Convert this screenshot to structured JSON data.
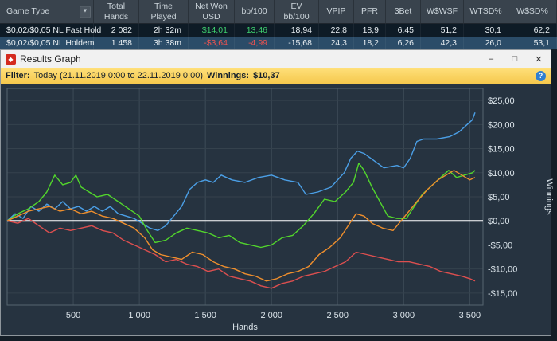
{
  "table": {
    "columns": [
      "Game Type",
      "Total Hands",
      "Time Played",
      "Net Won USD",
      "bb/100",
      "EV bb/100",
      "VPIP",
      "PFR",
      "3Bet",
      "W$WSF",
      "WTSD%",
      "W$SD%"
    ],
    "rows": [
      {
        "game_type": "$0,02/$0,05 NL Fast Hold",
        "total_hands": "2 082",
        "time_played": "2h 32m",
        "net_won": "$14,01",
        "bb100": "13,46",
        "ev_bb100": "18,94",
        "vpip": "22,8",
        "pfr": "18,9",
        "threebet": "6,45",
        "wwsf": "51,2",
        "wtsd": "30,1",
        "wsd": "62,2"
      },
      {
        "game_type": "$0,02/$0,05 NL Holdem",
        "total_hands": "1 458",
        "time_played": "3h 38m",
        "net_won": "-$3,64",
        "bb100": "-4,99",
        "ev_bb100": "-15,68",
        "vpip": "24,3",
        "pfr": "18,2",
        "threebet": "6,26",
        "wwsf": "42,3",
        "wtsd": "26,0",
        "wsd": "53,1"
      }
    ]
  },
  "window": {
    "title": "Results Graph",
    "filter": {
      "label": "Filter:",
      "range": "Today (21.11.2019 0:00 to 22.11.2019 0:00)",
      "winnings_label": "Winnings:",
      "winnings_value": "$10,37"
    }
  },
  "icons": {
    "app": "◆",
    "minimize": "–",
    "maximize": "□",
    "close": "✕",
    "help": "?",
    "dropdown": "▼"
  },
  "colors": {
    "positive": "#3ed06e",
    "negative": "#ef5350",
    "filter_bar": "#f8d355",
    "chart_background": "#263340",
    "zero_line": "#ffffff"
  },
  "chart_data": {
    "type": "line",
    "title": "Results Graph",
    "xlabel": "Hands",
    "ylabel": "Winnings",
    "xlim": [
      0,
      3600
    ],
    "ylim": [
      -17.5,
      27.5
    ],
    "grid": true,
    "legend": "none",
    "zero_line": 0,
    "x_ticks": [
      {
        "value": 500,
        "label": "500"
      },
      {
        "value": 1000,
        "label": "1 000"
      },
      {
        "value": 1500,
        "label": "1 500"
      },
      {
        "value": 2000,
        "label": "2 000"
      },
      {
        "value": 2500,
        "label": "2 500"
      },
      {
        "value": 3000,
        "label": "3 000"
      },
      {
        "value": 3500,
        "label": "3 500"
      }
    ],
    "y_ticks": [
      {
        "value": 25,
        "label": "$25,00"
      },
      {
        "value": 20,
        "label": "$20,00"
      },
      {
        "value": 15,
        "label": "$15,00"
      },
      {
        "value": 10,
        "label": "$10,00"
      },
      {
        "value": 5,
        "label": "$5,00"
      },
      {
        "value": 0,
        "label": "$0,00"
      },
      {
        "value": -5,
        "label": "-$5,00"
      },
      {
        "value": -10,
        "label": "-$10,00"
      },
      {
        "value": -15,
        "label": "-$15,00"
      }
    ],
    "series": [
      {
        "name": "series-blue",
        "color": "#4b9fe6",
        "points": [
          [
            0,
            0
          ],
          [
            60,
            1.5
          ],
          [
            120,
            0.5
          ],
          [
            180,
            3
          ],
          [
            240,
            2
          ],
          [
            300,
            3.5
          ],
          [
            360,
            2.5
          ],
          [
            420,
            4
          ],
          [
            480,
            2.5
          ],
          [
            540,
            3
          ],
          [
            600,
            2
          ],
          [
            660,
            3
          ],
          [
            720,
            2
          ],
          [
            780,
            3
          ],
          [
            840,
            1.5
          ],
          [
            900,
            1
          ],
          [
            960,
            0.5
          ],
          [
            1020,
            -0.5
          ],
          [
            1080,
            -1.5
          ],
          [
            1140,
            -2
          ],
          [
            1200,
            -1
          ],
          [
            1260,
            1
          ],
          [
            1320,
            3
          ],
          [
            1380,
            6.5
          ],
          [
            1440,
            8
          ],
          [
            1500,
            8.5
          ],
          [
            1560,
            8
          ],
          [
            1620,
            9.5
          ],
          [
            1700,
            8.5
          ],
          [
            1800,
            8
          ],
          [
            1900,
            9
          ],
          [
            2000,
            9.5
          ],
          [
            2100,
            8.5
          ],
          [
            2200,
            8
          ],
          [
            2260,
            5.5
          ],
          [
            2350,
            6
          ],
          [
            2450,
            7
          ],
          [
            2550,
            10
          ],
          [
            2600,
            13
          ],
          [
            2650,
            14.5
          ],
          [
            2700,
            14
          ],
          [
            2750,
            13
          ],
          [
            2850,
            11
          ],
          [
            2950,
            11.5
          ],
          [
            3000,
            11
          ],
          [
            3050,
            13
          ],
          [
            3100,
            16.5
          ],
          [
            3150,
            17
          ],
          [
            3250,
            17
          ],
          [
            3350,
            17.5
          ],
          [
            3420,
            18.5
          ],
          [
            3480,
            20
          ],
          [
            3520,
            21
          ],
          [
            3540,
            22.5
          ]
        ]
      },
      {
        "name": "series-green",
        "color": "#52d62c",
        "points": [
          [
            0,
            0
          ],
          [
            80,
            1.5
          ],
          [
            160,
            2.5
          ],
          [
            240,
            4
          ],
          [
            300,
            6
          ],
          [
            360,
            9.5
          ],
          [
            420,
            7.5
          ],
          [
            480,
            8
          ],
          [
            520,
            9.5
          ],
          [
            560,
            7
          ],
          [
            620,
            6
          ],
          [
            680,
            5
          ],
          [
            760,
            5.5
          ],
          [
            840,
            4
          ],
          [
            920,
            2.5
          ],
          [
            1000,
            1
          ],
          [
            1060,
            -2
          ],
          [
            1120,
            -4.5
          ],
          [
            1200,
            -4
          ],
          [
            1280,
            -2.5
          ],
          [
            1360,
            -1.5
          ],
          [
            1440,
            -2
          ],
          [
            1520,
            -2.5
          ],
          [
            1600,
            -3.5
          ],
          [
            1680,
            -3
          ],
          [
            1760,
            -4.5
          ],
          [
            1840,
            -5
          ],
          [
            1920,
            -5.5
          ],
          [
            2000,
            -5
          ],
          [
            2080,
            -3.5
          ],
          [
            2160,
            -3
          ],
          [
            2240,
            -1
          ],
          [
            2320,
            1.5
          ],
          [
            2400,
            4.5
          ],
          [
            2480,
            4
          ],
          [
            2560,
            6
          ],
          [
            2620,
            8
          ],
          [
            2660,
            12
          ],
          [
            2700,
            10.5
          ],
          [
            2760,
            7
          ],
          [
            2820,
            4
          ],
          [
            2880,
            1
          ],
          [
            2950,
            0.5
          ],
          [
            3020,
            0.5
          ],
          [
            3080,
            3
          ],
          [
            3140,
            5.5
          ],
          [
            3200,
            7
          ],
          [
            3280,
            9
          ],
          [
            3340,
            10.5
          ],
          [
            3400,
            9
          ],
          [
            3460,
            9.5
          ],
          [
            3520,
            10
          ],
          [
            3540,
            10.5
          ]
        ]
      },
      {
        "name": "series-orange",
        "color": "#ef8f2d",
        "points": [
          [
            0,
            0
          ],
          [
            80,
            1
          ],
          [
            160,
            2
          ],
          [
            240,
            2.5
          ],
          [
            320,
            3
          ],
          [
            400,
            2
          ],
          [
            480,
            2.5
          ],
          [
            560,
            1.5
          ],
          [
            640,
            2
          ],
          [
            720,
            1
          ],
          [
            800,
            0.5
          ],
          [
            880,
            -0.5
          ],
          [
            960,
            -1.5
          ],
          [
            1040,
            -3.5
          ],
          [
            1100,
            -6
          ],
          [
            1160,
            -7
          ],
          [
            1240,
            -7.5
          ],
          [
            1320,
            -8
          ],
          [
            1400,
            -6.5
          ],
          [
            1480,
            -7
          ],
          [
            1560,
            -8.5
          ],
          [
            1640,
            -9.5
          ],
          [
            1720,
            -10
          ],
          [
            1800,
            -11
          ],
          [
            1880,
            -11.5
          ],
          [
            1960,
            -12.5
          ],
          [
            2040,
            -12
          ],
          [
            2120,
            -11
          ],
          [
            2200,
            -10.5
          ],
          [
            2280,
            -9.5
          ],
          [
            2360,
            -7
          ],
          [
            2440,
            -5.5
          ],
          [
            2520,
            -3.5
          ],
          [
            2580,
            -1
          ],
          [
            2640,
            1.5
          ],
          [
            2700,
            1
          ],
          [
            2760,
            -0.5
          ],
          [
            2840,
            -1.5
          ],
          [
            2920,
            -2
          ],
          [
            2980,
            0
          ],
          [
            3040,
            2
          ],
          [
            3100,
            4
          ],
          [
            3180,
            6.5
          ],
          [
            3260,
            8.5
          ],
          [
            3320,
            9.5
          ],
          [
            3380,
            10.5
          ],
          [
            3440,
            9.5
          ],
          [
            3500,
            8.5
          ],
          [
            3540,
            9
          ]
        ]
      },
      {
        "name": "series-red",
        "color": "#dd4f4f",
        "points": [
          [
            0,
            0
          ],
          [
            80,
            -0.5
          ],
          [
            160,
            0.5
          ],
          [
            240,
            -1
          ],
          [
            320,
            -2.5
          ],
          [
            400,
            -1.5
          ],
          [
            480,
            -2
          ],
          [
            560,
            -1.5
          ],
          [
            640,
            -1
          ],
          [
            720,
            -2
          ],
          [
            800,
            -2.5
          ],
          [
            880,
            -4
          ],
          [
            960,
            -5
          ],
          [
            1040,
            -6
          ],
          [
            1120,
            -7
          ],
          [
            1200,
            -8.5
          ],
          [
            1280,
            -8
          ],
          [
            1360,
            -9
          ],
          [
            1440,
            -9.5
          ],
          [
            1520,
            -10.5
          ],
          [
            1600,
            -10
          ],
          [
            1680,
            -11.5
          ],
          [
            1760,
            -12
          ],
          [
            1840,
            -12.5
          ],
          [
            1920,
            -13.5
          ],
          [
            2000,
            -14
          ],
          [
            2080,
            -13
          ],
          [
            2160,
            -12.5
          ],
          [
            2240,
            -11.5
          ],
          [
            2320,
            -11
          ],
          [
            2400,
            -10.5
          ],
          [
            2480,
            -9.5
          ],
          [
            2560,
            -8.5
          ],
          [
            2640,
            -6.5
          ],
          [
            2720,
            -7
          ],
          [
            2800,
            -7.5
          ],
          [
            2880,
            -8
          ],
          [
            2960,
            -8.5
          ],
          [
            3040,
            -8.5
          ],
          [
            3120,
            -9
          ],
          [
            3200,
            -9.5
          ],
          [
            3280,
            -10.5
          ],
          [
            3360,
            -11
          ],
          [
            3440,
            -11.5
          ],
          [
            3500,
            -12
          ],
          [
            3540,
            -12.5
          ]
        ]
      }
    ]
  }
}
